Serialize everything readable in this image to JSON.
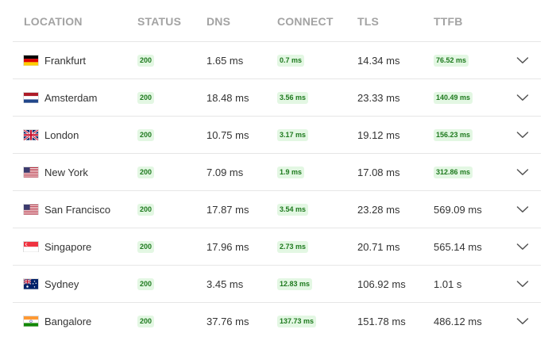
{
  "headers": {
    "location": "LOCATION",
    "status": "STATUS",
    "dns": "DNS",
    "connect": "CONNECT",
    "tls": "TLS",
    "ttfb": "TTFB"
  },
  "rows": [
    {
      "location": "Frankfurt",
      "flag": "germany-flag",
      "status": "200",
      "dns": "1.65 ms",
      "connect": "0.7 ms",
      "connect_badge": true,
      "tls": "14.34 ms",
      "ttfb": "76.52 ms",
      "ttfb_badge": true
    },
    {
      "location": "Amsterdam",
      "flag": "netherlands-flag",
      "status": "200",
      "dns": "18.48 ms",
      "connect": "3.56 ms",
      "connect_badge": true,
      "tls": "23.33 ms",
      "ttfb": "140.49 ms",
      "ttfb_badge": true
    },
    {
      "location": "London",
      "flag": "uk-flag",
      "status": "200",
      "dns": "10.75 ms",
      "connect": "3.17 ms",
      "connect_badge": true,
      "tls": "19.12 ms",
      "ttfb": "156.23 ms",
      "ttfb_badge": true
    },
    {
      "location": "New York",
      "flag": "usa-flag",
      "status": "200",
      "dns": "7.09 ms",
      "connect": "1.9 ms",
      "connect_badge": true,
      "tls": "17.08 ms",
      "ttfb": "312.86 ms",
      "ttfb_badge": true
    },
    {
      "location": "San Francisco",
      "flag": "usa-flag",
      "status": "200",
      "dns": "17.87 ms",
      "connect": "3.54 ms",
      "connect_badge": true,
      "tls": "23.28 ms",
      "ttfb": "569.09 ms",
      "ttfb_badge": false
    },
    {
      "location": "Singapore",
      "flag": "singapore-flag",
      "status": "200",
      "dns": "17.96 ms",
      "connect": "2.73 ms",
      "connect_badge": true,
      "tls": "20.71 ms",
      "ttfb": "565.14 ms",
      "ttfb_badge": false
    },
    {
      "location": "Sydney",
      "flag": "australia-flag",
      "status": "200",
      "dns": "3.45 ms",
      "connect": "12.83 ms",
      "connect_badge": true,
      "tls": "106.92 ms",
      "ttfb": "1.01 s",
      "ttfb_badge": false
    },
    {
      "location": "Bangalore",
      "flag": "india-flag",
      "status": "200",
      "dns": "37.76 ms",
      "connect": "137.73 ms",
      "connect_badge": true,
      "tls": "151.78 ms",
      "ttfb": "486.12 ms",
      "ttfb_badge": false
    }
  ],
  "colors": {
    "badge_bg": "#e3f7e3",
    "badge_text": "#1e7a1e",
    "header_text": "#a3a3a3",
    "divider": "#e6e6e6"
  }
}
